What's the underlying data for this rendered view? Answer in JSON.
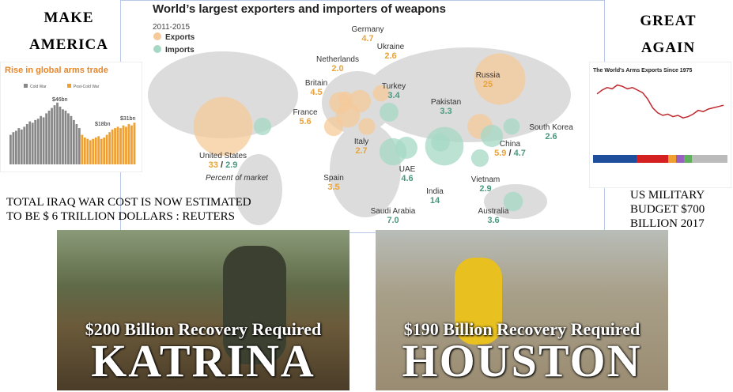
{
  "left_heading": [
    "MAKE",
    "AMERICA"
  ],
  "right_heading": [
    "GREAT",
    "AGAIN"
  ],
  "map": {
    "title": "World’s largest exporters and importers of weapons",
    "period": "2011-2015",
    "legend": [
      "Exports",
      "Imports"
    ],
    "note": "Percent of market",
    "countries": [
      {
        "name": "Germany",
        "exports": 4.7
      },
      {
        "name": "Netherlands",
        "exports": {
          "value": 2,
          "label": "2.0"
        }
      },
      {
        "name": "Ukraine",
        "exports": 2.6
      },
      {
        "name": "Britain",
        "exports": 4.5
      },
      {
        "name": "Turkey",
        "imports": 3.4
      },
      {
        "name": "Russia",
        "exports": 25
      },
      {
        "name": "France",
        "exports": 5.6
      },
      {
        "name": "Pakistan",
        "imports": 3.3
      },
      {
        "name": "South Korea",
        "imports": 2.6
      },
      {
        "name": "United States",
        "exports": 33,
        "imports": 2.9
      },
      {
        "name": "Italy",
        "exports": 2.7
      },
      {
        "name": "China",
        "exports": 5.9,
        "imports": 4.7
      },
      {
        "name": "UAE",
        "imports": 4.6
      },
      {
        "name": "Spain",
        "exports": 3.5
      },
      {
        "name": "India",
        "imports": 14
      },
      {
        "name": "Vietnam",
        "imports": 2.9
      },
      {
        "name": "Saudi Arabia",
        "imports": {
          "value": 7,
          "label": "7.0"
        }
      },
      {
        "name": "Australia",
        "imports": 3.6
      }
    ]
  },
  "left_inset": {
    "title": "Rise in global arms trade",
    "legend": [
      "Cold War",
      "Post-Cold War"
    ],
    "callouts": [
      "$46bn",
      "$18bn",
      "$31bn"
    ],
    "cold_war": [
      22,
      24,
      25,
      27,
      26,
      28,
      30,
      32,
      31,
      33,
      34,
      36,
      35,
      38,
      40,
      42,
      44,
      46,
      43,
      41,
      40,
      38,
      36,
      33,
      30,
      27
    ],
    "post_cold_war": [
      22,
      20,
      19,
      18,
      19,
      20,
      21,
      19,
      20,
      22,
      24,
      26,
      27,
      28,
      27,
      29,
      28,
      30,
      29,
      31
    ]
  },
  "right_inset": {
    "title": "The World's Arms Exports Since 1975",
    "values": [
      37,
      40,
      42,
      41,
      44,
      43,
      41,
      42,
      40,
      38,
      33,
      26,
      22,
      20,
      21,
      19,
      20,
      18,
      19,
      21,
      24,
      23,
      25,
      26,
      27,
      28
    ]
  },
  "left_note": [
    "TOTAL IRAQ WAR COST IS NOW ESTIMATED",
    "TO BE $ 6 TRILLION DOLLARS : REUTERS"
  ],
  "right_note": [
    "US MILITARY",
    "BUDGET $700",
    "BILLION 2017"
  ],
  "photos": [
    {
      "caption": "$200 Billion Recovery Required",
      "name": "KATRINA"
    },
    {
      "caption": "$190 Billion Recovery Required",
      "name": "HOUSTON"
    }
  ]
}
